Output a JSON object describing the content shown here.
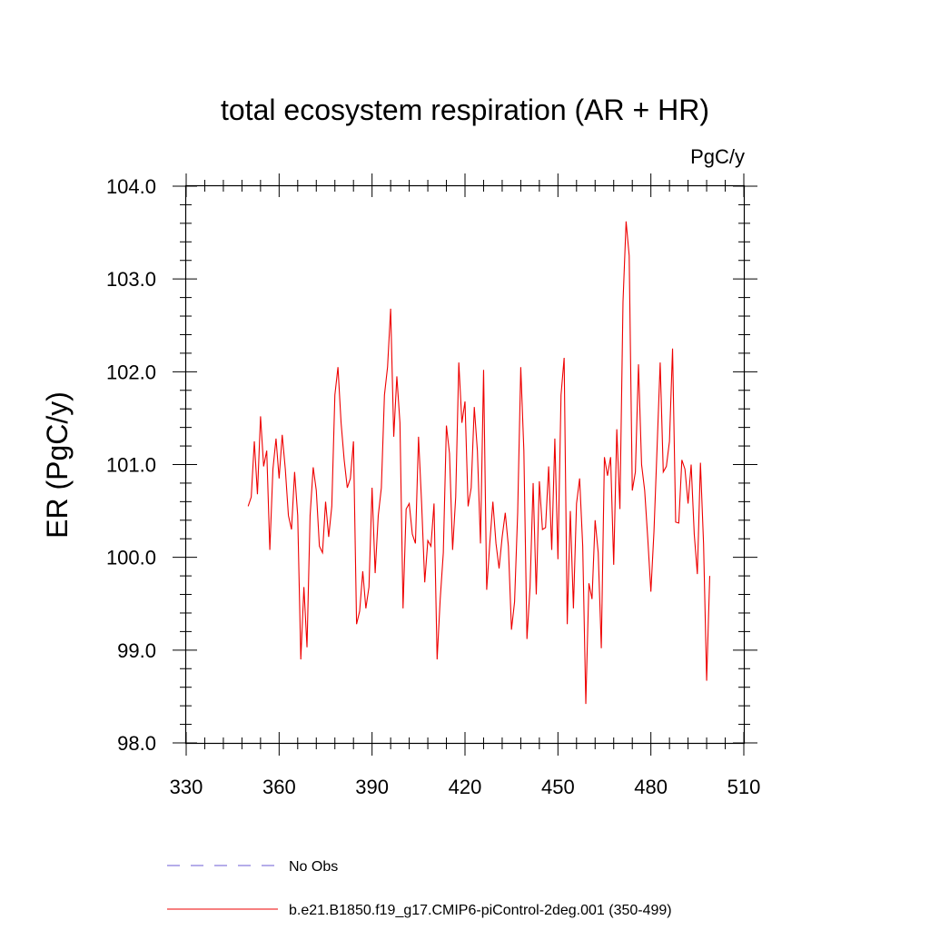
{
  "chart_data": {
    "type": "line",
    "title": "total ecosystem respiration (AR + HR)",
    "units": "PgC/y",
    "ylabel": "ER  (PgC/y)",
    "xlabel": "",
    "xlim": [
      330,
      510
    ],
    "ylim": [
      98.0,
      104.0
    ],
    "xticks": [
      330,
      360,
      390,
      420,
      450,
      480,
      510
    ],
    "xtick_labels": [
      "330",
      "360",
      "390",
      "420",
      "450",
      "480",
      "510"
    ],
    "yticks": [
      98.0,
      99.0,
      100.0,
      101.0,
      102.0,
      103.0,
      104.0
    ],
    "ytick_labels": [
      "98.0",
      "99.0",
      "100.0",
      "101.0",
      "102.0",
      "103.0",
      "104.0"
    ],
    "legend": [
      {
        "label": "No Obs",
        "color": "#6b5bd6",
        "style": "dashed"
      },
      {
        "label": "b.e21.B1850.f19_g17.CMIP6-piControl-2deg.001 (350-499)",
        "color": "#ee0000",
        "style": "solid"
      }
    ],
    "series": [
      {
        "name": "b.e21.B1850.f19_g17.CMIP6-piControl-2deg.001 (350-499)",
        "color": "#ee0000",
        "x_start": 350,
        "values": [
          100.55,
          100.65,
          101.25,
          100.68,
          101.52,
          100.98,
          101.15,
          100.08,
          100.95,
          101.28,
          100.85,
          101.32,
          100.95,
          100.45,
          100.3,
          100.92,
          100.45,
          98.9,
          99.68,
          99.03,
          100.45,
          100.97,
          100.72,
          100.12,
          100.05,
          100.6,
          100.22,
          100.55,
          101.75,
          102.05,
          101.45,
          101.05,
          100.75,
          100.85,
          101.25,
          99.28,
          99.42,
          99.85,
          99.45,
          99.68,
          100.75,
          99.83,
          100.45,
          100.75,
          101.75,
          102.05,
          102.68,
          101.3,
          101.95,
          101.45,
          99.45,
          100.52,
          100.58,
          100.25,
          100.15,
          101.3,
          100.58,
          99.73,
          100.18,
          100.12,
          100.58,
          98.9,
          99.55,
          100.05,
          101.42,
          101.12,
          100.08,
          100.65,
          102.1,
          101.45,
          101.68,
          100.55,
          100.75,
          101.62,
          101.15,
          100.15,
          102.02,
          99.65,
          100.15,
          100.6,
          100.15,
          99.88,
          100.22,
          100.48,
          100.12,
          99.22,
          99.52,
          100.48,
          102.05,
          101.15,
          99.12,
          99.68,
          100.8,
          99.6,
          100.82,
          100.3,
          100.32,
          100.98,
          100.08,
          101.28,
          99.98,
          101.75,
          102.15,
          99.28,
          100.5,
          99.45,
          100.58,
          100.85,
          100.12,
          98.42,
          99.72,
          99.55,
          100.4,
          100.05,
          99.02,
          101.08,
          100.88,
          101.08,
          99.92,
          101.38,
          100.52,
          102.75,
          103.62,
          103.25,
          100.72,
          100.92,
          102.08,
          101.0,
          100.72,
          100.2,
          99.63,
          100.28,
          101.18,
          102.1,
          100.92,
          100.98,
          101.25,
          102.25,
          100.38,
          100.37,
          101.05,
          100.95,
          100.58,
          101.0,
          100.25,
          99.82,
          101.02,
          100.15,
          98.67,
          99.8
        ]
      }
    ]
  }
}
